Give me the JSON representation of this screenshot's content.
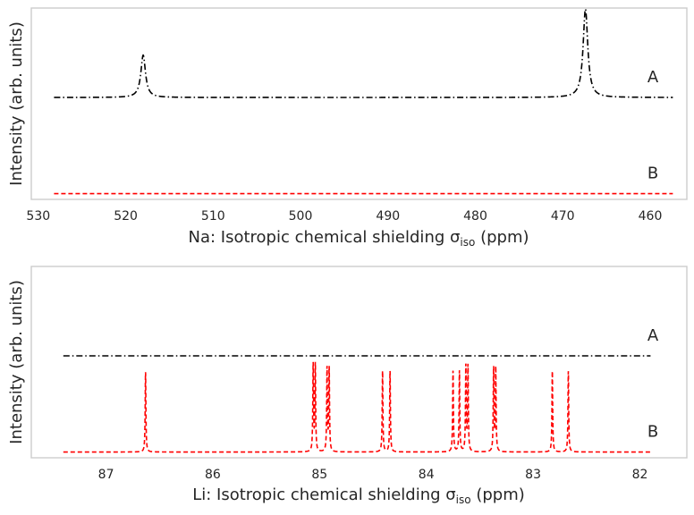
{
  "colors": {
    "background": "#ffffff",
    "frame": "#cccccc",
    "text": "#262626"
  },
  "chart_data": [
    {
      "type": "line",
      "panel": "top",
      "xlabel": "Na: Isotropic chemical shielding σ",
      "xlabel_sub": "iso",
      "xlabel_suffix": " (ppm)",
      "ylabel": "Intensity (arb. units)",
      "xlim": [
        530.8,
        455.8
      ],
      "ylim": [
        -0.06,
        1.93
      ],
      "x_reversed": true,
      "grid": false,
      "x_ticks": [
        530,
        520,
        510,
        500,
        490,
        480,
        470,
        460
      ],
      "x_range": [
        528.2,
        457.4
      ],
      "series": [
        {
          "name": "A",
          "color": "#000000",
          "linestyle": "dashdot",
          "offset": 1,
          "peaks": [
            {
              "x": 518.0,
              "height": 0.44,
              "width": 0.32
            },
            {
              "x": 467.4,
              "height": 0.92,
              "width": 0.32
            }
          ]
        },
        {
          "name": "B",
          "color": "#ff0000",
          "linestyle": "dashed",
          "offset": 0,
          "peaks": []
        }
      ]
    },
    {
      "type": "line",
      "panel": "bottom",
      "xlabel": "Li: Isotropic chemical shielding σ",
      "xlabel_sub": "iso",
      "xlabel_suffix": " (ppm)",
      "ylabel": "Intensity (arb. units)",
      "xlim": [
        87.7,
        81.56
      ],
      "ylim": [
        -0.06,
        1.93
      ],
      "x_reversed": true,
      "grid": false,
      "x_ticks": [
        87,
        86,
        85,
        84,
        83,
        82
      ],
      "x_range": [
        87.4,
        81.9
      ],
      "series": [
        {
          "name": "A",
          "color": "#000000",
          "linestyle": "dashdot",
          "offset": 1,
          "peaks": []
        },
        {
          "name": "B",
          "color": "#ff0000",
          "linestyle": "dashed",
          "offset": 0,
          "peaks": [
            {
              "x": 86.63,
              "height": 0.83,
              "width": 0.004
            },
            {
              "x": 85.06,
              "height": 0.9,
              "width": 0.004
            },
            {
              "x": 85.04,
              "height": 0.9,
              "width": 0.004
            },
            {
              "x": 84.93,
              "height": 0.86,
              "width": 0.004
            },
            {
              "x": 84.91,
              "height": 0.86,
              "width": 0.004
            },
            {
              "x": 84.41,
              "height": 0.84,
              "width": 0.004
            },
            {
              "x": 84.34,
              "height": 0.84,
              "width": 0.004
            },
            {
              "x": 83.75,
              "height": 0.84,
              "width": 0.004
            },
            {
              "x": 83.69,
              "height": 0.84,
              "width": 0.004
            },
            {
              "x": 83.63,
              "height": 0.88,
              "width": 0.004
            },
            {
              "x": 83.61,
              "height": 0.88,
              "width": 0.004
            },
            {
              "x": 83.37,
              "height": 0.86,
              "width": 0.004
            },
            {
              "x": 83.35,
              "height": 0.86,
              "width": 0.004
            },
            {
              "x": 82.82,
              "height": 0.84,
              "width": 0.004
            },
            {
              "x": 82.67,
              "height": 0.84,
              "width": 0.004
            }
          ]
        }
      ]
    }
  ]
}
